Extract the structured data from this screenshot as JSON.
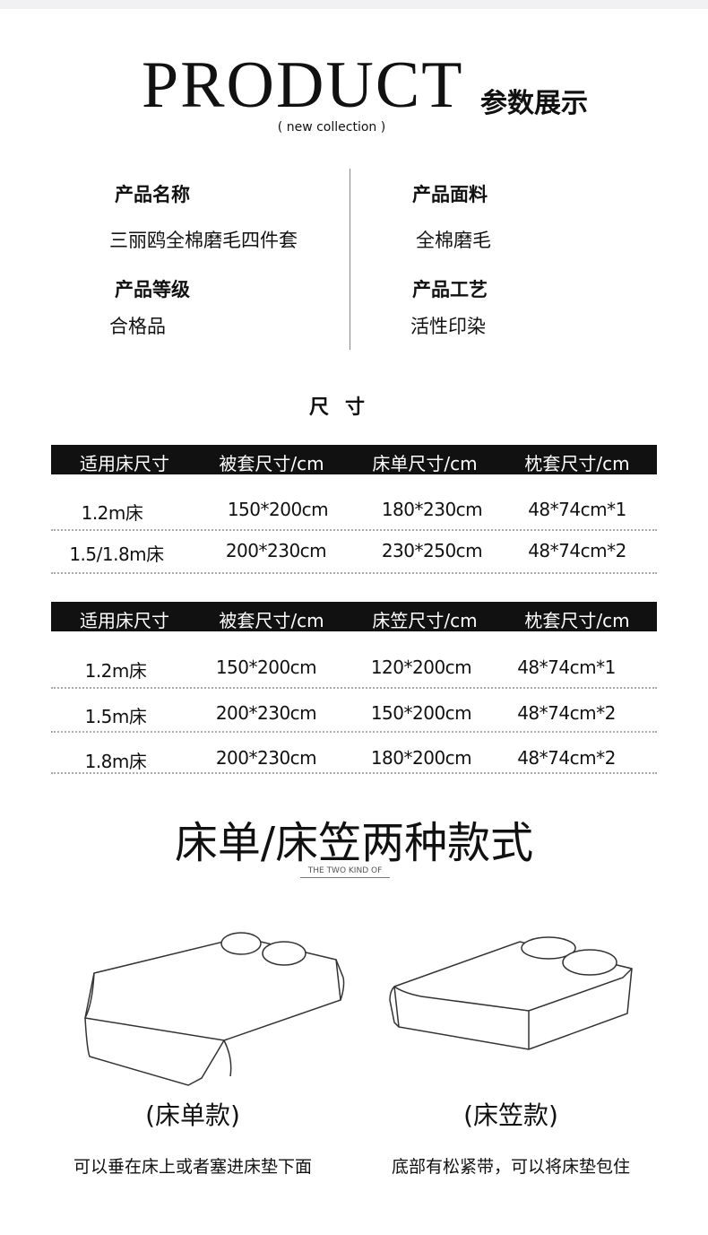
{
  "header": {
    "title_en": "PRODUCT",
    "title_cn": "参数展示",
    "subtitle": "( new collection )"
  },
  "specs": [
    {
      "label": "产品名称",
      "value": "三丽鸥全棉磨毛四件套"
    },
    {
      "label": "产品面料",
      "value": "全棉磨毛"
    },
    {
      "label": "产品等级",
      "value": "合格品"
    },
    {
      "label": "产品工艺",
      "value": "活性印染"
    }
  ],
  "size_title": "尺寸",
  "table1": {
    "headers": [
      "适用床尺寸",
      "被套尺寸/cm",
      "床单尺寸/cm",
      "枕套尺寸/cm"
    ],
    "rows": [
      [
        "1.2m床",
        "150*200cm",
        "180*230cm",
        "48*74cm*1"
      ],
      [
        "1.5/1.8m床",
        "200*230cm",
        "230*250cm",
        "48*74cm*2"
      ]
    ]
  },
  "table2": {
    "headers": [
      "适用床尺寸",
      "被套尺寸/cm",
      "床笠尺寸/cm",
      "枕套尺寸/cm"
    ],
    "rows": [
      [
        "1.2m床",
        "150*200cm",
        "120*200cm",
        "48*74cm*1"
      ],
      [
        "1.5m床",
        "200*230cm",
        "150*200cm",
        "48*74cm*2"
      ],
      [
        "1.8m床",
        "200*230cm",
        "180*200cm",
        "48*74cm*2"
      ]
    ]
  },
  "styles": {
    "title": "床单/床笠两种款式",
    "subtitle": "THE TWO KIND OF",
    "items": [
      {
        "caption": "(床单款)",
        "desc": "可以垂在床上或者塞进床垫下面"
      },
      {
        "caption": "(床笠款)",
        "desc": "底部有松紧带，可以将床垫包住"
      }
    ]
  }
}
